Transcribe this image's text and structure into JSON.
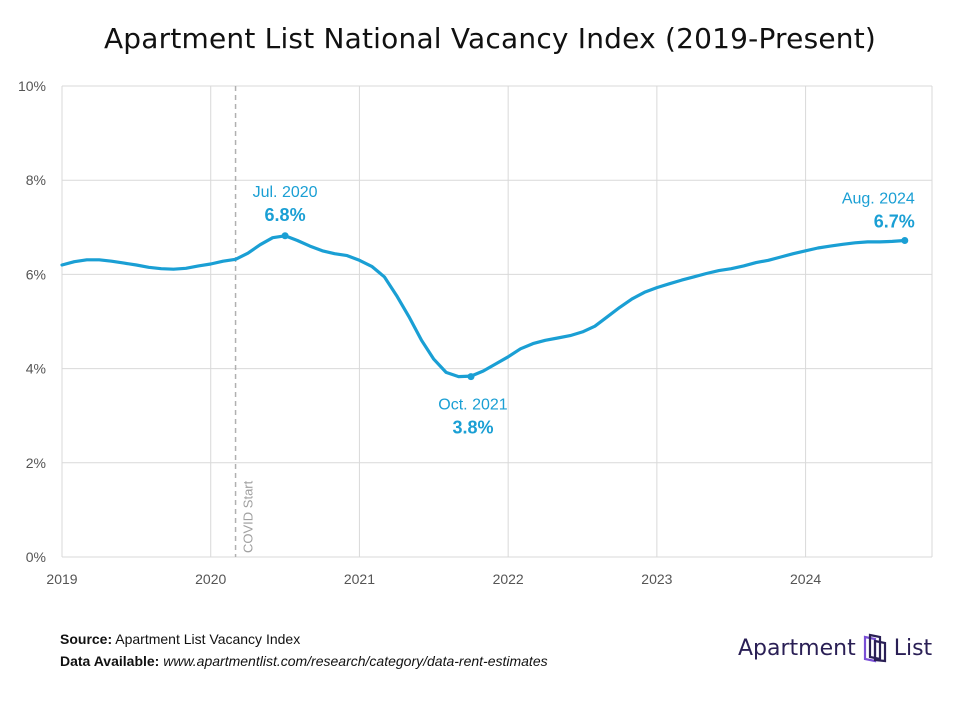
{
  "title": "Apartment List National Vacancy Index (2019-Present)",
  "colors": {
    "line": "#1a9fd4",
    "grid": "#d9d9d9",
    "axis_text": "#555555",
    "covid_line": "#b0b0b0",
    "brand": "#2a1f55"
  },
  "footer": {
    "source_label": "Source:",
    "source_value": "Apartment List Vacancy Index",
    "data_label": "Data Available:",
    "data_value": "www.apartmentlist.com/research/category/data-rent-estimates"
  },
  "logo": {
    "text_left": "Apartment",
    "text_right": "List",
    "icon": "apartment-list-logo-icon"
  },
  "chart_data": {
    "type": "line",
    "title": "Apartment List National Vacancy Index (2019-Present)",
    "xlabel": "",
    "ylabel": "",
    "xlim": [
      2019.0,
      2024.667
    ],
    "ylim": [
      0,
      10
    ],
    "y_ticks": [
      "0%",
      "2%",
      "4%",
      "6%",
      "8%",
      "10%"
    ],
    "x_ticks": [
      "2019",
      "2020",
      "2021",
      "2022",
      "2023",
      "2024"
    ],
    "grid": true,
    "series": [
      {
        "x": [
          2019.0,
          2019.083,
          2019.167,
          2019.25,
          2019.333,
          2019.417,
          2019.5,
          2019.583,
          2019.667,
          2019.75,
          2019.833,
          2019.917,
          2020.0,
          2020.083,
          2020.167,
          2020.25,
          2020.333,
          2020.417,
          2020.5,
          2020.583,
          2020.667,
          2020.75,
          2020.833,
          2020.917,
          2021.0,
          2021.083,
          2021.167,
          2021.25,
          2021.333,
          2021.417,
          2021.5,
          2021.583,
          2021.667,
          2021.75,
          2021.833,
          2021.917,
          2022.0,
          2022.083,
          2022.167,
          2022.25,
          2022.333,
          2022.417,
          2022.5,
          2022.583,
          2022.667,
          2022.75,
          2022.833,
          2022.917,
          2023.0,
          2023.083,
          2023.167,
          2023.25,
          2023.333,
          2023.417,
          2023.5,
          2023.583,
          2023.667,
          2023.75,
          2023.833,
          2023.917,
          2024.0,
          2024.083,
          2024.167,
          2024.25,
          2024.333,
          2024.417,
          2024.5,
          2024.583,
          2024.667
        ],
        "y": [
          6.2,
          6.27,
          6.31,
          6.31,
          6.28,
          6.24,
          6.2,
          6.15,
          6.12,
          6.11,
          6.13,
          6.18,
          6.22,
          6.28,
          6.32,
          6.45,
          6.63,
          6.78,
          6.82,
          6.72,
          6.6,
          6.5,
          6.44,
          6.4,
          6.3,
          6.17,
          5.95,
          5.55,
          5.1,
          4.6,
          4.2,
          3.92,
          3.83,
          3.84,
          3.95,
          4.1,
          4.25,
          4.42,
          4.53,
          4.6,
          4.65,
          4.7,
          4.78,
          4.9,
          5.1,
          5.3,
          5.48,
          5.62,
          5.72,
          5.8,
          5.88,
          5.95,
          6.02,
          6.08,
          6.12,
          6.18,
          6.25,
          6.3,
          6.37,
          6.44,
          6.5,
          6.56,
          6.6,
          6.64,
          6.67,
          6.69,
          6.69,
          6.7,
          6.72
        ]
      }
    ],
    "annotations": [
      {
        "label": "Jul. 2020",
        "value": "6.8%",
        "x": 2020.5,
        "y": 6.82,
        "pos": "above"
      },
      {
        "label": "Oct. 2021",
        "value": "3.8%",
        "x": 2021.75,
        "y": 3.83,
        "pos": "below"
      },
      {
        "label": "Aug. 2024",
        "value": "6.7%",
        "x": 2024.667,
        "y": 6.72,
        "pos": "above-left"
      }
    ],
    "reference_lines": [
      {
        "label": "COVID Start",
        "x": 2020.167,
        "style": "dashed"
      }
    ]
  }
}
